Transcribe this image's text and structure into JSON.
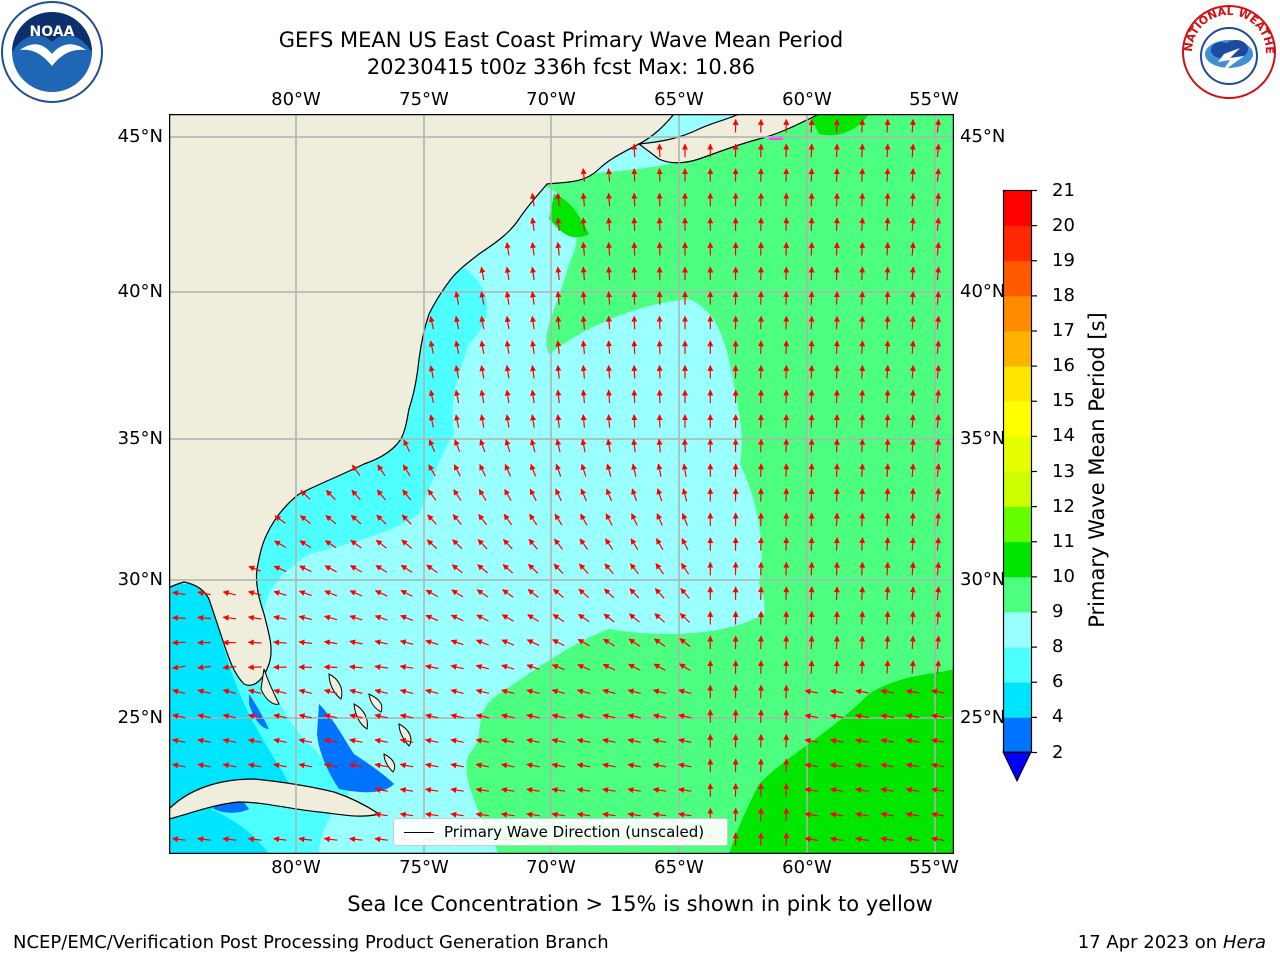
{
  "title": {
    "line1": "GEFS MEAN US East Coast Primary Wave Mean Period",
    "line2": "20230415 t00z 336h fcst   Max: 10.86"
  },
  "map": {
    "lon_labels": [
      "80°W",
      "75°W",
      "70°W",
      "65°W",
      "60°W",
      "55°W"
    ],
    "lat_labels": [
      "45°N",
      "40°N",
      "35°N",
      "30°N",
      "25°N"
    ],
    "extent": {
      "lon": [
        -85,
        -54.5
      ],
      "lat": [
        20.5,
        45.8
      ]
    },
    "gridlines": true,
    "arrow_color": "#ff0000",
    "land_color": "#efeedc"
  },
  "colorbar": {
    "label": "Primary Wave Mean Period [s]",
    "ticks": [
      "2",
      "4",
      "6",
      "8",
      "9",
      "10",
      "11",
      "12",
      "13",
      "14",
      "15",
      "16",
      "17",
      "18",
      "19",
      "20",
      "21"
    ],
    "colors": [
      "#0073ff",
      "#00e5ff",
      "#4dffff",
      "#99ffff",
      "#4dff80",
      "#00e600",
      "#66ff00",
      "#ccff00",
      "#e6ff00",
      "#ffff00",
      "#ffe600",
      "#ffb300",
      "#ff8c00",
      "#ff5a00",
      "#ff2800",
      "#ff0000"
    ],
    "under_color": "#0000ff"
  },
  "legend": {
    "label": "Primary Wave Direction (unscaled)"
  },
  "subtitle": "Sea Ice Concentration > 15% is shown in pink to yellow",
  "footer": {
    "left": "NCEP/EMC/Verification Post Processing Product Generation Branch",
    "date": "17 Apr 2023 on ",
    "machine": "Hera"
  },
  "logos": {
    "noaa": "NOAA",
    "nws": "NATIONAL WEATHER SERVICE"
  }
}
